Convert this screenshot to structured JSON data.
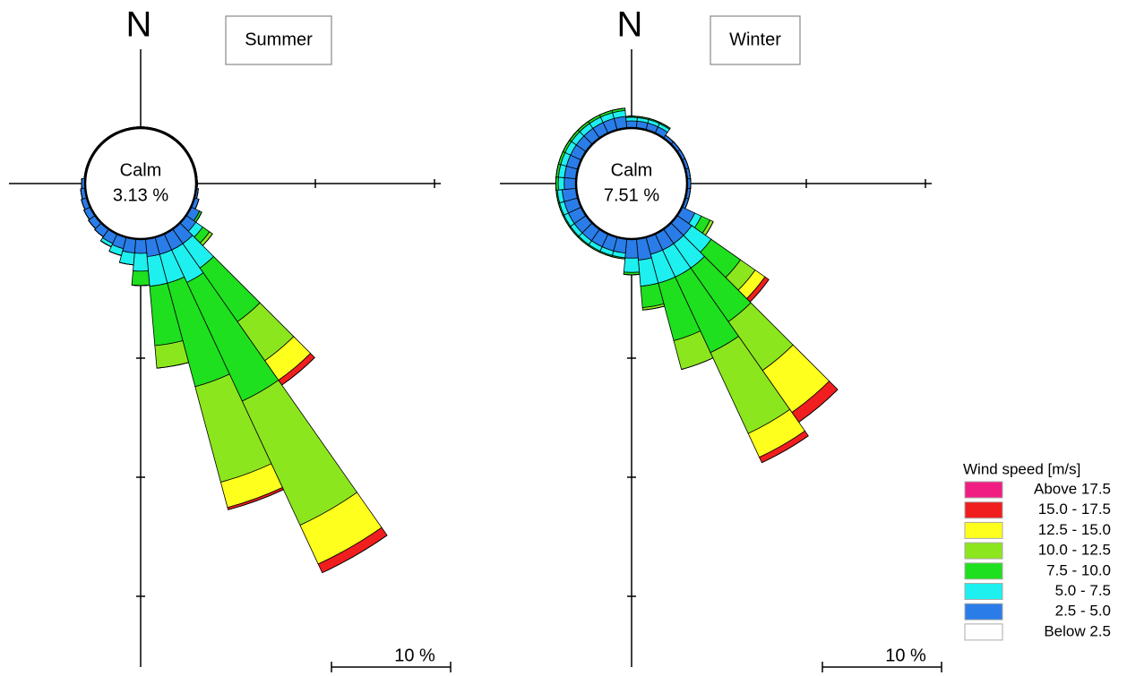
{
  "chart_data": [
    {
      "type": "windrose",
      "title": "Summer",
      "north_label": "N",
      "calm_label": "Calm",
      "calm": {
        "value": 3.13,
        "label": "3.13 %"
      },
      "scale_bar": {
        "value": 10,
        "label": "10 %"
      },
      "series": [
        {
          "values": [
            0,
            0,
            0,
            0,
            0,
            0,
            0,
            0,
            0,
            0,
            0,
            0,
            0,
            0,
            0,
            0,
            0,
            0,
            0,
            0,
            0,
            0,
            0,
            0,
            0,
            0,
            0,
            0,
            0,
            0,
            0,
            0,
            0,
            0,
            0,
            0
          ]
        },
        {
          "values": [
            0.1,
            0.1,
            0.1,
            0.1,
            0.1,
            0.1,
            0.1,
            0.1,
            0.1,
            0.1,
            0.2,
            0.4,
            0.8,
            1.0,
            1.5,
            1.5,
            1.5,
            1.5,
            1.2,
            1.2,
            1.0,
            0.9,
            0.8,
            0.7,
            0.6,
            0.5,
            0.4,
            0.3,
            0.1,
            0.1,
            0.1,
            0.1,
            0.1,
            0.1,
            0.1,
            0.1
          ]
        },
        {
          "values": [
            0,
            0,
            0,
            0,
            0,
            0,
            0,
            0,
            0,
            0,
            0,
            0,
            0,
            0.7,
            2.5,
            3,
            2.5,
            2.5,
            1.5,
            1.0,
            0.6,
            0.3,
            0,
            0,
            0,
            0,
            0,
            0,
            0,
            0,
            0,
            0,
            0,
            0,
            0,
            0
          ]
        },
        {
          "values": [
            0,
            0,
            0,
            0,
            0,
            0,
            0,
            0,
            0,
            0,
            0,
            0,
            0.2,
            0.7,
            5.5,
            11,
            9,
            5,
            1.2,
            0,
            0,
            0,
            0,
            0,
            0,
            0,
            0,
            0,
            0,
            0,
            0,
            0,
            0,
            0,
            0,
            0
          ]
        },
        {
          "values": [
            0,
            0,
            0,
            0,
            0,
            0,
            0,
            0,
            0,
            0,
            0,
            0,
            0,
            0.3,
            4,
            11.5,
            8.3,
            1.9,
            0,
            0,
            0,
            0,
            0,
            0,
            0,
            0,
            0,
            0,
            0,
            0,
            0,
            0,
            0,
            0,
            0,
            0
          ]
        },
        {
          "values": [
            0,
            0,
            0,
            0,
            0,
            0,
            0,
            0,
            0,
            0,
            0,
            0,
            0,
            0,
            2,
            3.6,
            2.2,
            0,
            0,
            0,
            0,
            0,
            0,
            0,
            0,
            0,
            0,
            0,
            0,
            0,
            0,
            0,
            0,
            0,
            0,
            0
          ]
        },
        {
          "values": [
            0,
            0,
            0,
            0,
            0,
            0,
            0,
            0,
            0,
            0,
            0,
            0,
            0,
            0,
            0.5,
            0.8,
            0.2,
            0,
            0,
            0,
            0,
            0,
            0,
            0,
            0,
            0,
            0,
            0,
            0,
            0,
            0,
            0,
            0,
            0,
            0,
            0
          ]
        },
        {
          "values": [
            0,
            0,
            0,
            0,
            0,
            0,
            0,
            0,
            0,
            0,
            0,
            0,
            0,
            0,
            0,
            0,
            0,
            0,
            0,
            0,
            0,
            0,
            0,
            0,
            0,
            0,
            0,
            0,
            0,
            0,
            0,
            0,
            0,
            0,
            0,
            0
          ]
        }
      ]
    },
    {
      "type": "windrose",
      "title": "Winter",
      "north_label": "N",
      "calm_label": "Calm",
      "calm": {
        "value": 7.51,
        "label": "7.51 %"
      },
      "scale_bar": {
        "value": 10,
        "label": "10 %"
      },
      "series": [
        {
          "values": [
            0,
            0,
            0,
            0,
            0,
            0,
            0,
            0,
            0,
            0,
            0,
            0,
            0,
            0,
            0,
            0,
            0,
            0,
            0,
            0,
            0,
            0,
            0,
            0,
            0,
            0,
            0,
            0,
            0,
            0,
            0,
            0,
            0,
            0,
            0,
            0
          ]
        },
        {
          "values": [
            0.6,
            0.6,
            0.6,
            0.6,
            0.3,
            0.3,
            0.3,
            0.3,
            0.3,
            0.3,
            0.3,
            0.3,
            1.2,
            1.5,
            1.5,
            1.5,
            1.5,
            1.8,
            1.6,
            1.2,
            1.2,
            1.2,
            1.2,
            1.2,
            1.2,
            1.2,
            1.2,
            1.0,
            1.0,
            1.0,
            1.0,
            1.0,
            1.0,
            1.0,
            1.0,
            1.0
          ]
        },
        {
          "values": [
            0.3,
            0.3,
            0.3,
            0.3,
            0,
            0,
            0,
            0,
            0,
            0,
            0,
            0,
            0.6,
            2,
            2.5,
            2.5,
            2.5,
            2.2,
            1.2,
            0.4,
            0.4,
            0.4,
            0.4,
            0.4,
            0.4,
            0.4,
            0.4,
            0.5,
            0.5,
            0.5,
            0.5,
            0.5,
            0.5,
            0.5,
            0.5,
            0.5
          ]
        },
        {
          "values": [
            0.1,
            0.1,
            0.1,
            0.1,
            0,
            0,
            0,
            0,
            0,
            0,
            0,
            0,
            0.8,
            3,
            5.5,
            7,
            5,
            1.8,
            0.2,
            0.1,
            0.1,
            0.1,
            0.1,
            0.1,
            0.1,
            0.1,
            0.1,
            0.2,
            0.2,
            0.2,
            0.2,
            0.2,
            0.2,
            0.2,
            0.2,
            0.2
          ]
        },
        {
          "values": [
            0,
            0,
            0,
            0,
            0,
            0,
            0,
            0,
            0,
            0,
            0,
            0,
            0.3,
            1.5,
            5,
            7.5,
            2.5,
            0.2,
            0,
            0,
            0,
            0,
            0,
            0,
            0,
            0,
            0,
            0,
            0,
            0,
            0,
            0,
            0,
            0,
            0,
            0
          ]
        },
        {
          "values": [
            0,
            0,
            0,
            0,
            0,
            0,
            0,
            0,
            0,
            0,
            0,
            0,
            0,
            1,
            4.3,
            2.2,
            0,
            0,
            0,
            0,
            0,
            0,
            0,
            0,
            0,
            0,
            0,
            0,
            0,
            0,
            0,
            0,
            0,
            0,
            0,
            0
          ]
        },
        {
          "values": [
            0,
            0,
            0,
            0,
            0,
            0,
            0,
            0,
            0,
            0,
            0,
            0,
            0,
            0.4,
            1,
            0.5,
            0,
            0,
            0,
            0,
            0,
            0,
            0,
            0,
            0,
            0,
            0,
            0,
            0,
            0,
            0,
            0,
            0,
            0,
            0,
            0
          ]
        },
        {
          "values": [
            0,
            0,
            0,
            0,
            0,
            0,
            0,
            0,
            0,
            0,
            0,
            0,
            0,
            0,
            0,
            0,
            0,
            0,
            0,
            0,
            0,
            0,
            0,
            0,
            0,
            0,
            0,
            0,
            0,
            0,
            0,
            0,
            0,
            0,
            0,
            0
          ]
        }
      ]
    }
  ],
  "legend": {
    "title": "Wind speed [m/s]",
    "bins": [
      {
        "name": "Below 2.5",
        "color": "#ffffff"
      },
      {
        "name": "2.5 - 5.0",
        "color": "#2a7de8"
      },
      {
        "name": "5.0 - 7.5",
        "color": "#1ef0f0"
      },
      {
        "name": "7.5 - 10.0",
        "color": "#1ee01e"
      },
      {
        "name": "10.0 - 12.5",
        "color": "#8ce61e"
      },
      {
        "name": "12.5 - 15.0",
        "color": "#ffff1e"
      },
      {
        "name": "15.0 - 17.5",
        "color": "#f01e1e"
      },
      {
        "name": "Above 17.5",
        "color": "#f01e82"
      }
    ]
  }
}
